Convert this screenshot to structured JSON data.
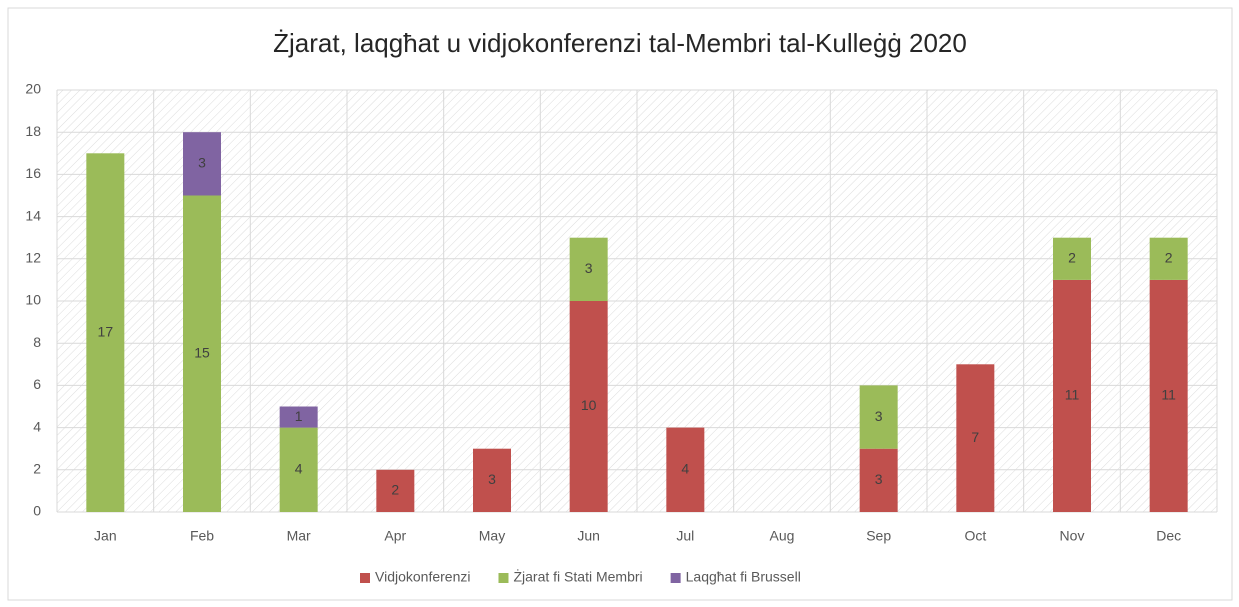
{
  "chart_data": {
    "type": "stacked_bar",
    "title": "Żjarat, laqgħat u vidjokonferenzi tal-Membri tal-Kulleġġ 2020",
    "categories": [
      "Jan",
      "Feb",
      "Mar",
      "Apr",
      "May",
      "Jun",
      "Jul",
      "Aug",
      "Sep",
      "Oct",
      "Nov",
      "Dec"
    ],
    "series": [
      {
        "name": "Vidjokonferenzi",
        "color": "#c0504d",
        "values": [
          null,
          null,
          null,
          2,
          3,
          10,
          4,
          null,
          3,
          7,
          11,
          11
        ]
      },
      {
        "name": "Żjarat fi Stati Membri",
        "color": "#9bbb59",
        "values": [
          17,
          15,
          4,
          null,
          null,
          3,
          null,
          null,
          3,
          null,
          2,
          2
        ]
      },
      {
        "name": "Laqgħat fi Brussell",
        "color": "#8064a2",
        "values": [
          null,
          3,
          1,
          null,
          null,
          null,
          null,
          null,
          null,
          null,
          null,
          null
        ]
      }
    ],
    "ylim": [
      0,
      20
    ],
    "yticks": [
      0,
      2,
      4,
      6,
      8,
      10,
      12,
      14,
      16,
      18,
      20
    ],
    "grid": true,
    "legend": "bottom"
  }
}
